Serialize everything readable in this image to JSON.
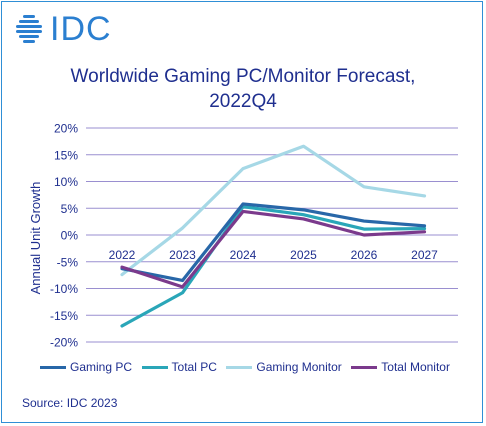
{
  "logo": {
    "text": "IDC"
  },
  "source": "Source: IDC 2023",
  "colors": {
    "text": "#1f2f8f",
    "grid": "#9a8fd0",
    "border": "#2f8fd6",
    "gaming_pc": "#2867a8",
    "total_pc": "#2aa6b8",
    "gaming_monitor": "#a6d8e6",
    "total_monitor": "#7b3a8c"
  },
  "chart_data": {
    "type": "line",
    "title_lines": [
      "Worldwide Gaming PC/Monitor Forecast,",
      "2022Q4"
    ],
    "xlabel": "",
    "ylabel": "Annual Unit Growth",
    "categories": [
      "2022",
      "2023",
      "2024",
      "2025",
      "2026",
      "2027"
    ],
    "yticks": [
      "20%",
      "15%",
      "10%",
      "5%",
      "0%",
      "-5%",
      "-10%",
      "-15%",
      "-20%"
    ],
    "ylim": [
      -20,
      20
    ],
    "grid": true,
    "legend_position": "bottom",
    "series": [
      {
        "name": "Gaming PC",
        "color_key": "gaming_pc",
        "values": [
          -6.3,
          -8.5,
          5.8,
          4.7,
          2.6,
          1.7
        ]
      },
      {
        "name": "Total PC",
        "color_key": "total_pc",
        "values": [
          -17.0,
          -10.8,
          5.3,
          3.8,
          1.1,
          1.2
        ]
      },
      {
        "name": "Gaming Monitor",
        "color_key": "gaming_monitor",
        "values": [
          -7.4,
          1.3,
          12.4,
          16.6,
          9.0,
          7.3
        ]
      },
      {
        "name": "Total Monitor",
        "color_key": "total_monitor",
        "values": [
          -6.0,
          -9.7,
          4.4,
          3.0,
          0.0,
          0.6
        ]
      }
    ]
  }
}
